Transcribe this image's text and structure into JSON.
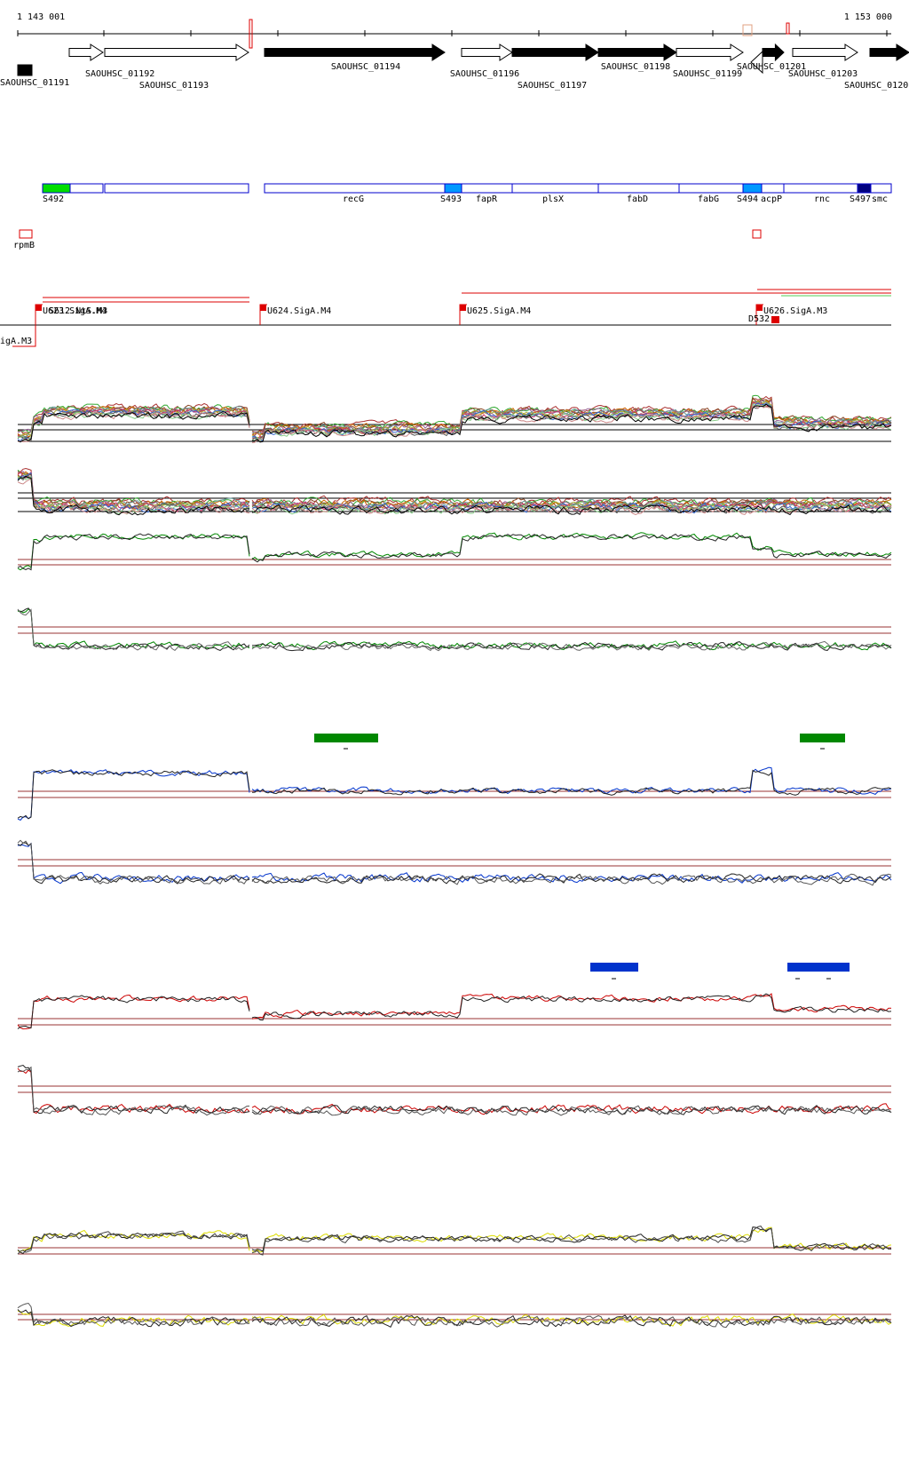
{
  "coordinates": {
    "start": "1 143 001",
    "end": "1 153 000"
  },
  "genes": [
    {
      "label": "SAOUHSC_01191",
      "strand": "+",
      "fill": "#000000"
    },
    {
      "label": "SAOUHSC_01192",
      "strand": "+",
      "fill": "#ffffff"
    },
    {
      "label": "SAOUHSC_01193",
      "strand": "+",
      "fill": "#ffffff"
    },
    {
      "label": "SAOUHSC_01194",
      "strand": "+",
      "fill": "#000000"
    },
    {
      "label": "SAOUHSC_01196",
      "strand": "+",
      "fill": "#ffffff"
    },
    {
      "label": "SAOUHSC_01197",
      "strand": "+",
      "fill": "#000000"
    },
    {
      "label": "SAOUHSC_01198",
      "strand": "+",
      "fill": "#000000"
    },
    {
      "label": "SAOUHSC_01199",
      "strand": "+",
      "fill": "#ffffff"
    },
    {
      "label": "SAOUHSC_01201",
      "strand": "-",
      "fill": "#ffffff"
    },
    {
      "label": "",
      "strand": "+",
      "fill": "#000000"
    },
    {
      "label": "SAOUHSC_01203",
      "strand": "+",
      "fill": "#ffffff"
    },
    {
      "label": "SAOUHSC_0120",
      "strand": "+",
      "fill": "#000000"
    }
  ],
  "features": [
    {
      "label": "S492",
      "color": "#00dd00"
    },
    {
      "label": "",
      "color": "#ffffff"
    },
    {
      "label": "",
      "color": "#ffffff"
    },
    {
      "label": "recG",
      "color": "#ffffff"
    },
    {
      "label": "S493",
      "color": "#0099ff"
    },
    {
      "label": "fapR",
      "color": "#ffffff"
    },
    {
      "label": "plsX",
      "color": "#ffffff"
    },
    {
      "label": "fabD",
      "color": "#ffffff"
    },
    {
      "label": "fabG",
      "color": "#ffffff"
    },
    {
      "label": "S494",
      "color": "#0099ff"
    },
    {
      "label": "acpP",
      "color": "#ffffff"
    },
    {
      "label": "rnc",
      "color": "#ffffff"
    },
    {
      "label": "S497",
      "color": "#000080"
    },
    {
      "label": "smc",
      "color": "#ffffff"
    }
  ],
  "small_features": [
    {
      "label": "rpmB"
    },
    {
      "label": ""
    }
  ],
  "promoters": [
    {
      "label": "U623.SigA.M4",
      "overlap": "S612.NtS.M3"
    },
    {
      "label": "U624.SigA.M4"
    },
    {
      "label": "U625.SigA.M4"
    },
    {
      "label": "U626.SigA.M3"
    },
    {
      "label": "D532"
    },
    {
      "label": "igA.M3"
    }
  ],
  "colors": {
    "axis": "#000000",
    "terminator": "#dd0000",
    "feature_outline": "#0000cc",
    "green_track": "#008800",
    "blue_track": "#0033cc",
    "red_track": "#cc0000",
    "yellow_track": "#dddd00",
    "threshold": "#993333"
  }
}
